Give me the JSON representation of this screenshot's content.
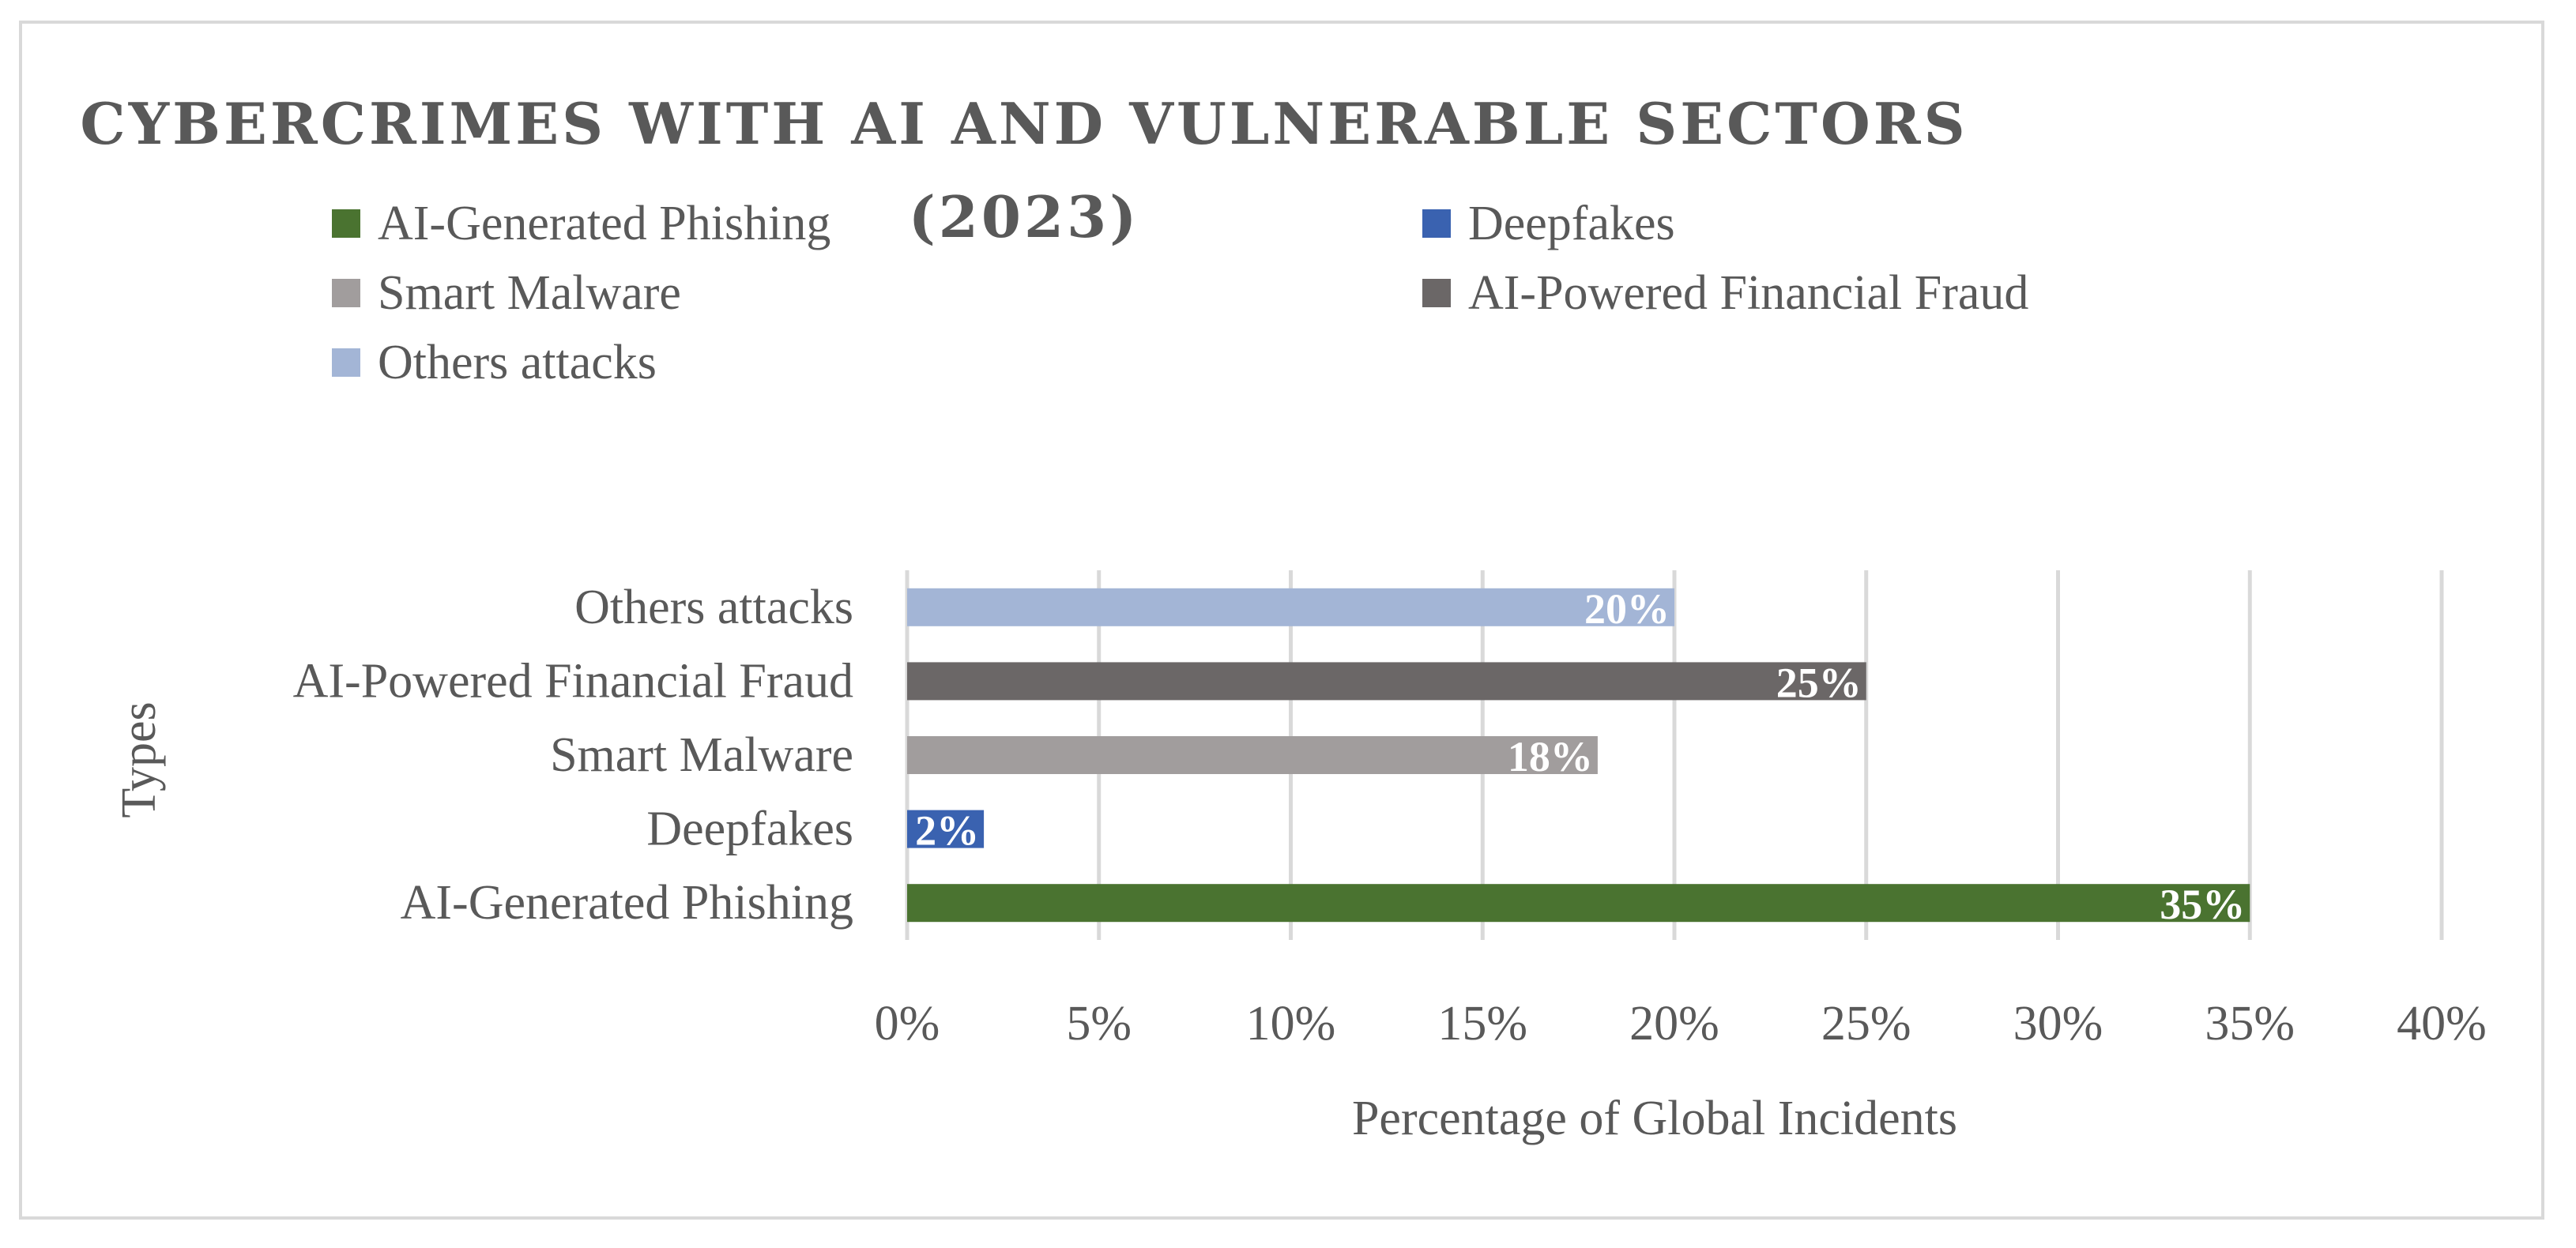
{
  "chart_data": {
    "type": "bar",
    "orientation": "horizontal",
    "title": "CYBERCRIMES WITH AI AND VULNERABLE SECTORS (2023)",
    "xlabel": "Percentage of Global Incidents",
    "ylabel": "Types",
    "categories": [
      "AI-Generated Phishing",
      "Deepfakes",
      "Smart Malware",
      "AI-Powered Financial Fraud",
      "Others attacks"
    ],
    "values": [
      35,
      2,
      18,
      25,
      20
    ],
    "data_labels": [
      "35%",
      "2%",
      "18%",
      "25%",
      "20%"
    ],
    "colors": [
      "#4a7330",
      "#3a62b0",
      "#a19d9d",
      "#6b6767",
      "#a3b5d6"
    ],
    "xlim": [
      0,
      40
    ],
    "xticks": [
      0,
      5,
      10,
      15,
      20,
      25,
      30,
      35,
      40
    ],
    "xtick_labels": [
      "0%",
      "5%",
      "10%",
      "15%",
      "20%",
      "25%",
      "30%",
      "35%",
      "40%"
    ],
    "grid": "vertical",
    "legend_position": "top",
    "legend": [
      {
        "label": "AI-Generated Phishing",
        "color": "#4a7330"
      },
      {
        "label": "Deepfakes",
        "color": "#3a62b0"
      },
      {
        "label": "Smart Malware",
        "color": "#a19d9d"
      },
      {
        "label": "AI-Powered Financial Fraud",
        "color": "#6b6767"
      },
      {
        "label": "Others attacks",
        "color": "#a3b5d6"
      }
    ]
  }
}
